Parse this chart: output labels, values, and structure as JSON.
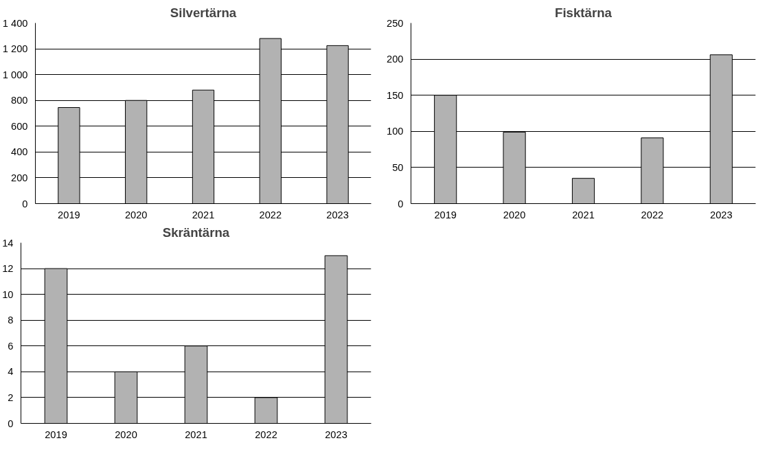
{
  "chart_data": [
    {
      "type": "bar",
      "title": "Silvertärna",
      "categories": [
        "2019",
        "2020",
        "2021",
        "2022",
        "2023"
      ],
      "values": [
        745,
        800,
        880,
        1280,
        1225
      ],
      "color": "#b2b2b2",
      "ylim": [
        0,
        1400
      ],
      "yticks": [
        0,
        200,
        400,
        600,
        800,
        {
          "value": 1000,
          "label": "1 000"
        },
        {
          "value": 1200,
          "label": "1 200"
        },
        {
          "value": 1400,
          "label": "1 400"
        }
      ],
      "grid": "y"
    },
    {
      "type": "bar",
      "title": "Fisktärna",
      "categories": [
        "2019",
        "2020",
        "2021",
        "2022",
        "2023"
      ],
      "values": [
        150,
        99,
        35,
        91,
        206
      ],
      "color": "#b2b2b2",
      "ylim": [
        0,
        250
      ],
      "yticks": [
        0,
        50,
        100,
        150,
        200,
        250
      ],
      "grid": "y"
    },
    {
      "type": "bar",
      "title": "Skräntärna",
      "categories": [
        "2019",
        "2020",
        "2021",
        "2022",
        "2023"
      ],
      "values": [
        12,
        4,
        6,
        2,
        13
      ],
      "color": "#b2b2b2",
      "ylim": [
        0,
        14
      ],
      "yticks": [
        0,
        2,
        4,
        6,
        8,
        10,
        12,
        14
      ],
      "grid": "y"
    }
  ]
}
